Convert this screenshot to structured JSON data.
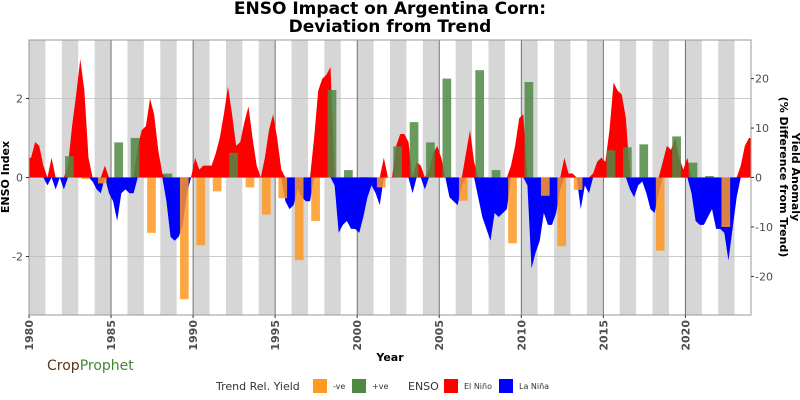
{
  "chart_data": {
    "type": "bar+area",
    "title_line1": "ENSO Impact on Argentina Corn:",
    "title_line2": "Deviation from Trend",
    "xlabel": "Year",
    "ylabel_left": "ENSO Index",
    "ylabel_right_line1": "Yield Anomaly",
    "ylabel_right_line2": "(% Difference from Trend)",
    "xlim": [
      1980,
      2024
    ],
    "ylim_left": [
      -3.48,
      3.48
    ],
    "ylim_right": [
      -27.8,
      27.8
    ],
    "x_ticks": [
      1980,
      1985,
      1990,
      1995,
      2000,
      2005,
      2010,
      2015,
      2020
    ],
    "y_ticks_left": [
      -2,
      0,
      2
    ],
    "y_ticks_right": [
      -20,
      -10,
      0,
      10,
      20
    ],
    "grid": true,
    "alternate_year_shading": true,
    "legend_position": "bottom",
    "colors": {
      "negative_yield": "#ff9922",
      "positive_yield": "#4f8a45",
      "el_nino": "#ff0000",
      "la_nina": "#0000ff",
      "shade": "#d6d6d6"
    },
    "legend": {
      "yield_title": "Trend Rel. Yield",
      "neg_label": "-ve",
      "pos_label": "+ve",
      "enso_title": "ENSO",
      "el_nino_label": "El Niño",
      "la_nina_label": "La Niña"
    },
    "yield_anomaly": {
      "years": [
        1982,
        1983,
        1984,
        1985,
        1986,
        1987,
        1988,
        1989,
        1990,
        1991,
        1992,
        1993,
        1994,
        1995,
        1996,
        1997,
        1998,
        1999,
        2000,
        2001,
        2002,
        2003,
        2004,
        2005,
        2006,
        2007,
        2008,
        2009,
        2010,
        2011,
        2012,
        2013,
        2015,
        2016,
        2017,
        2018,
        2019,
        2020,
        2021,
        2022
      ],
      "values": [
        4.3,
        -0.3,
        -1.2,
        7.1,
        8.0,
        -11.2,
        0.8,
        -24.6,
        -13.7,
        -2.8,
        5.0,
        -2.0,
        -7.5,
        -4.2,
        -16.7,
        -8.8,
        17.7,
        1.5,
        0.1,
        -2.0,
        6.3,
        11.2,
        7.1,
        20.0,
        -4.7,
        21.7,
        1.5,
        -13.3,
        19.3,
        -3.7,
        -13.9,
        -2.5,
        5.5,
        6.1,
        6.7,
        -14.8,
        8.3,
        3.0,
        0.3,
        -10.0
      ]
    },
    "enso_index": {
      "start_year": 1980,
      "samples_per_year": 4,
      "values": [
        0.5,
        0.9,
        0.8,
        0.3,
        -0.2,
        0.5,
        -0.3,
        0.0,
        -0.3,
        0.3,
        1.3,
        2.1,
        3.0,
        2.2,
        0.5,
        -0.1,
        -0.3,
        -0.4,
        0.3,
        -0.4,
        -0.6,
        -1.1,
        -0.4,
        -0.3,
        -0.4,
        -0.4,
        0.8,
        1.2,
        1.3,
        2.0,
        1.6,
        0.7,
        0.1,
        -0.6,
        -1.5,
        -1.6,
        -1.5,
        -1.2,
        -0.4,
        0.0,
        0.5,
        0.2,
        0.3,
        0.3,
        0.3,
        0.6,
        1.0,
        1.6,
        2.3,
        1.6,
        0.8,
        0.9,
        1.4,
        1.8,
        1.0,
        0.3,
        0.0,
        0.5,
        1.2,
        1.6,
        1.0,
        0.2,
        -0.6,
        -0.8,
        -0.7,
        -0.3,
        -0.5,
        -0.6,
        -0.6,
        1.0,
        2.2,
        2.5,
        2.6,
        2.8,
        -0.2,
        -1.4,
        -1.2,
        -1.1,
        -1.3,
        -1.3,
        -1.4,
        -1.0,
        -0.5,
        -0.2,
        -0.4,
        -0.7,
        0.5,
        0.0,
        0.0,
        0.8,
        1.1,
        1.1,
        0.9,
        -0.4,
        0.4,
        0.3,
        -0.3,
        0.2,
        0.6,
        0.8,
        0.5,
        0.0,
        -0.5,
        -0.6,
        -0.7,
        -0.2,
        0.6,
        1.2,
        0.4,
        -0.5,
        -1.0,
        -1.3,
        -1.6,
        -0.9,
        -1.0,
        -0.9,
        -0.8,
        0.3,
        0.8,
        1.5,
        1.6,
        -0.2,
        -2.3,
        -1.9,
        -1.6,
        -0.9,
        -1.2,
        -1.2,
        -0.9,
        -0.3,
        0.5,
        0.1,
        0.1,
        0.0,
        -0.8,
        -0.2,
        -0.4,
        0.1,
        0.4,
        0.5,
        0.4,
        1.2,
        2.4,
        2.2,
        2.1,
        1.5,
        -0.3,
        -0.5,
        -0.2,
        -0.1,
        -0.4,
        -0.8,
        -0.9,
        -0.4,
        0.4,
        0.8,
        0.7,
        1.0,
        0.5,
        0.2,
        0.5,
        -0.4,
        -1.1,
        -1.2,
        -1.2,
        -1.0,
        -0.8,
        -1.3,
        -1.3,
        -1.4,
        -2.1,
        -1.3,
        -0.5,
        0.3,
        0.8,
        1.0
      ]
    }
  },
  "logo": {
    "part1": "Crop",
    "part2": "Prophet"
  }
}
